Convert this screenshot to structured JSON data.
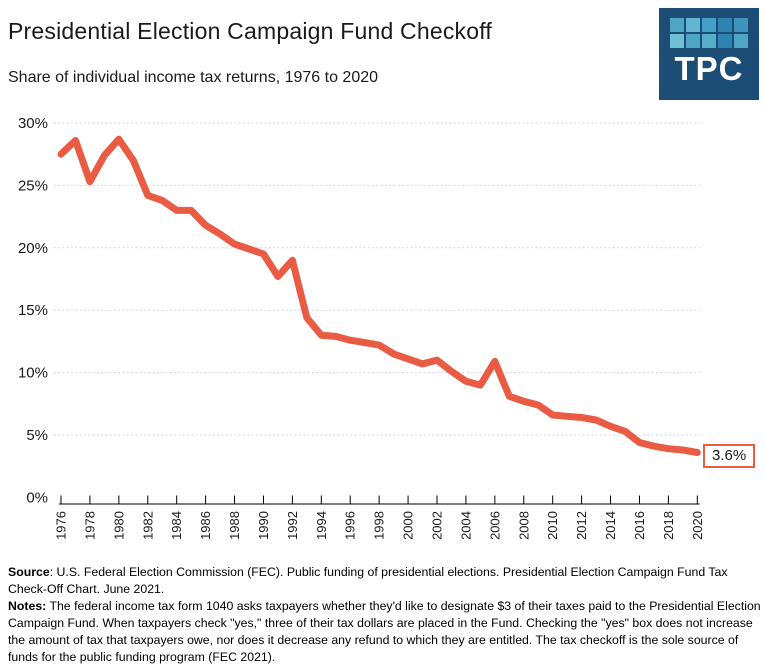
{
  "header": {
    "title": "Presidential Election Campaign Fund Checkoff",
    "subtitle": "Share of individual income tax returns, 1976 to 2020",
    "logo": {
      "text": "TPC",
      "bg_color": "#1c4d77",
      "tile_colors": [
        "#4ea5c4",
        "#5fb5d2",
        "#45a0c8",
        "#2f83b0",
        "#3d95be",
        "#6fbfd6",
        "#4ea5c4",
        "#56aecb",
        "#2f83b0",
        "#4ea5c4"
      ]
    }
  },
  "chart_data": {
    "type": "line",
    "title": "Presidential Election Campaign Fund Checkoff",
    "subtitle": "Share of individual income tax returns, 1976 to 2020",
    "x": [
      1976,
      1977,
      1978,
      1979,
      1980,
      1981,
      1982,
      1983,
      1984,
      1985,
      1986,
      1987,
      1988,
      1989,
      1990,
      1991,
      1992,
      1993,
      1994,
      1995,
      1996,
      1997,
      1998,
      1999,
      2000,
      2001,
      2002,
      2003,
      2004,
      2005,
      2006,
      2007,
      2008,
      2009,
      2010,
      2011,
      2012,
      2013,
      2014,
      2015,
      2016,
      2017,
      2018,
      2019,
      2020
    ],
    "values": [
      27.5,
      28.6,
      25.3,
      27.4,
      28.7,
      27.0,
      24.2,
      23.8,
      23.0,
      23.0,
      21.8,
      21.1,
      20.3,
      19.9,
      19.5,
      17.7,
      19.0,
      14.4,
      13.0,
      12.9,
      12.6,
      12.4,
      12.2,
      11.5,
      11.1,
      10.7,
      11.0,
      10.1,
      9.3,
      9.0,
      10.9,
      8.1,
      7.7,
      7.4,
      6.6,
      6.5,
      6.4,
      6.2,
      5.7,
      5.3,
      4.4,
      4.1,
      3.9,
      3.8,
      3.6
    ],
    "line_color": "#e95c43",
    "ylim": [
      0,
      30
    ],
    "yticks": [
      {
        "value": 0,
        "label": "0%"
      },
      {
        "value": 5,
        "label": "5%"
      },
      {
        "value": 10,
        "label": "10%"
      },
      {
        "value": 15,
        "label": "15%"
      },
      {
        "value": 20,
        "label": "20%"
      },
      {
        "value": 25,
        "label": "25%"
      },
      {
        "value": 30,
        "label": "30%"
      }
    ],
    "xticks": [
      "1976",
      "1978",
      "1980",
      "1982",
      "1984",
      "1986",
      "1988",
      "1990",
      "1992",
      "1994",
      "1996",
      "1998",
      "2000",
      "2002",
      "2004",
      "2006",
      "2008",
      "2010",
      "2012",
      "2014",
      "2016",
      "2018",
      "2020"
    ],
    "end_label": "3.6%",
    "grid": "dotted-horizontal",
    "legend_position": "none"
  },
  "footer": {
    "source_label": "Source",
    "source_text": ": U.S. Federal Election Commission (FEC). Public funding of presidential elections. Presidential Election Campaign Fund Tax Check-Off Chart. June 2021.",
    "notes_label": "Notes:",
    "notes_text": " The federal income tax form 1040 asks taxpayers whether they'd like to designate $3 of their taxes paid to the Presidential Election Campaign Fund. When taxpayers check \"yes,\" three of their tax dollars are placed in the Fund. Checking the \"yes\" box does not increase the amount of tax that taxpayers owe, nor does it decrease any refund to which they are entitled. The tax checkoff is the sole source of funds for the public funding program (FEC 2021)."
  }
}
